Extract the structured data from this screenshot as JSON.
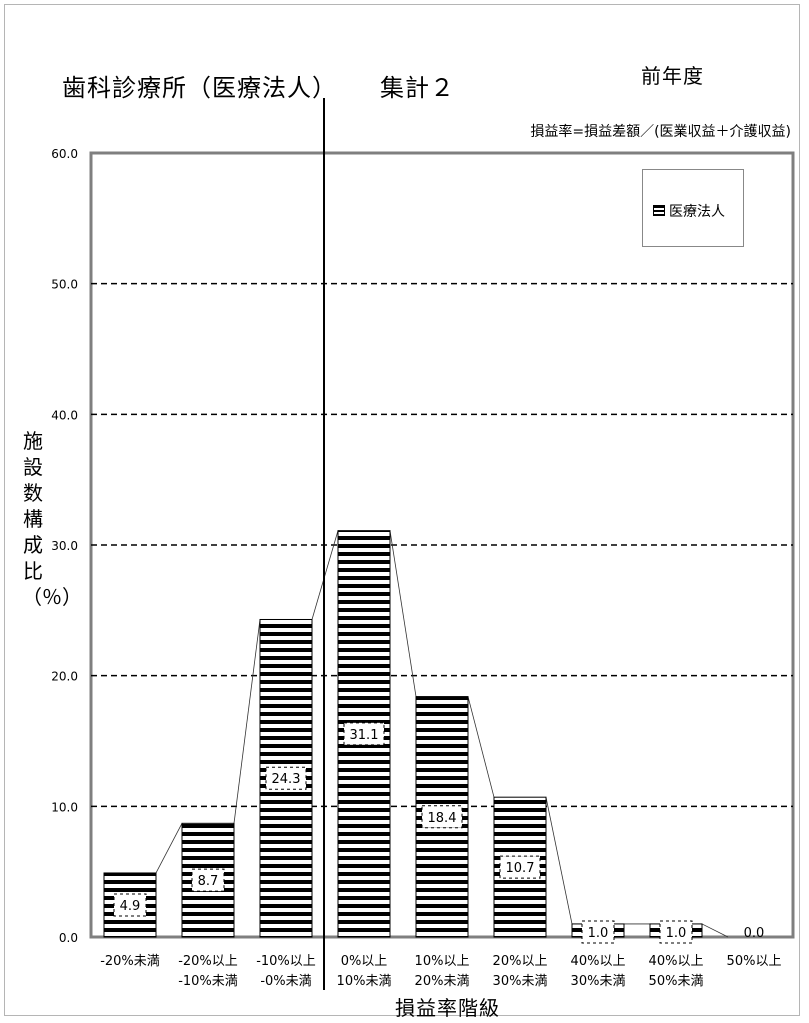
{
  "chart_data": {
    "type": "bar",
    "title": "歯科診療所（医療法人）",
    "subtitle": "集計２",
    "period": "前年度",
    "note": "損益率=損益差額／(医業収益＋介護収益)",
    "xlabel": "損益率階級",
    "ylabel": "施設数構成比（％）",
    "ylim": [
      0,
      60
    ],
    "yticks": [
      "0.0",
      "10.0",
      "20.0",
      "30.0",
      "40.0",
      "50.0",
      "60.0"
    ],
    "grid": true,
    "legend_position": "top-right",
    "categories": [
      [
        "-20%未満",
        ""
      ],
      [
        "-20%以上",
        "-10%未満"
      ],
      [
        "-10%以上",
        "-0%未満"
      ],
      [
        "0%以上",
        "10%未満"
      ],
      [
        "10%以上",
        "20%未満"
      ],
      [
        "20%以上",
        "30%未満"
      ],
      [
        "40%以上",
        "30%未満"
      ],
      [
        "40%以上",
        "50%未満"
      ],
      [
        "50%以上",
        ""
      ]
    ],
    "series": [
      {
        "name": "医療法人",
        "values": [
          4.9,
          8.7,
          24.3,
          31.1,
          18.4,
          10.7,
          1.0,
          1.0,
          0.0
        ],
        "labels": [
          "4.9",
          "8.7",
          "24.3",
          "31.1",
          "18.4",
          "10.7",
          "1.0",
          "1.0",
          "0.0"
        ]
      }
    ],
    "colors": {
      "bar_stripe": "#000000",
      "bar_fill": "#ffffff",
      "grid": "#000000"
    }
  }
}
